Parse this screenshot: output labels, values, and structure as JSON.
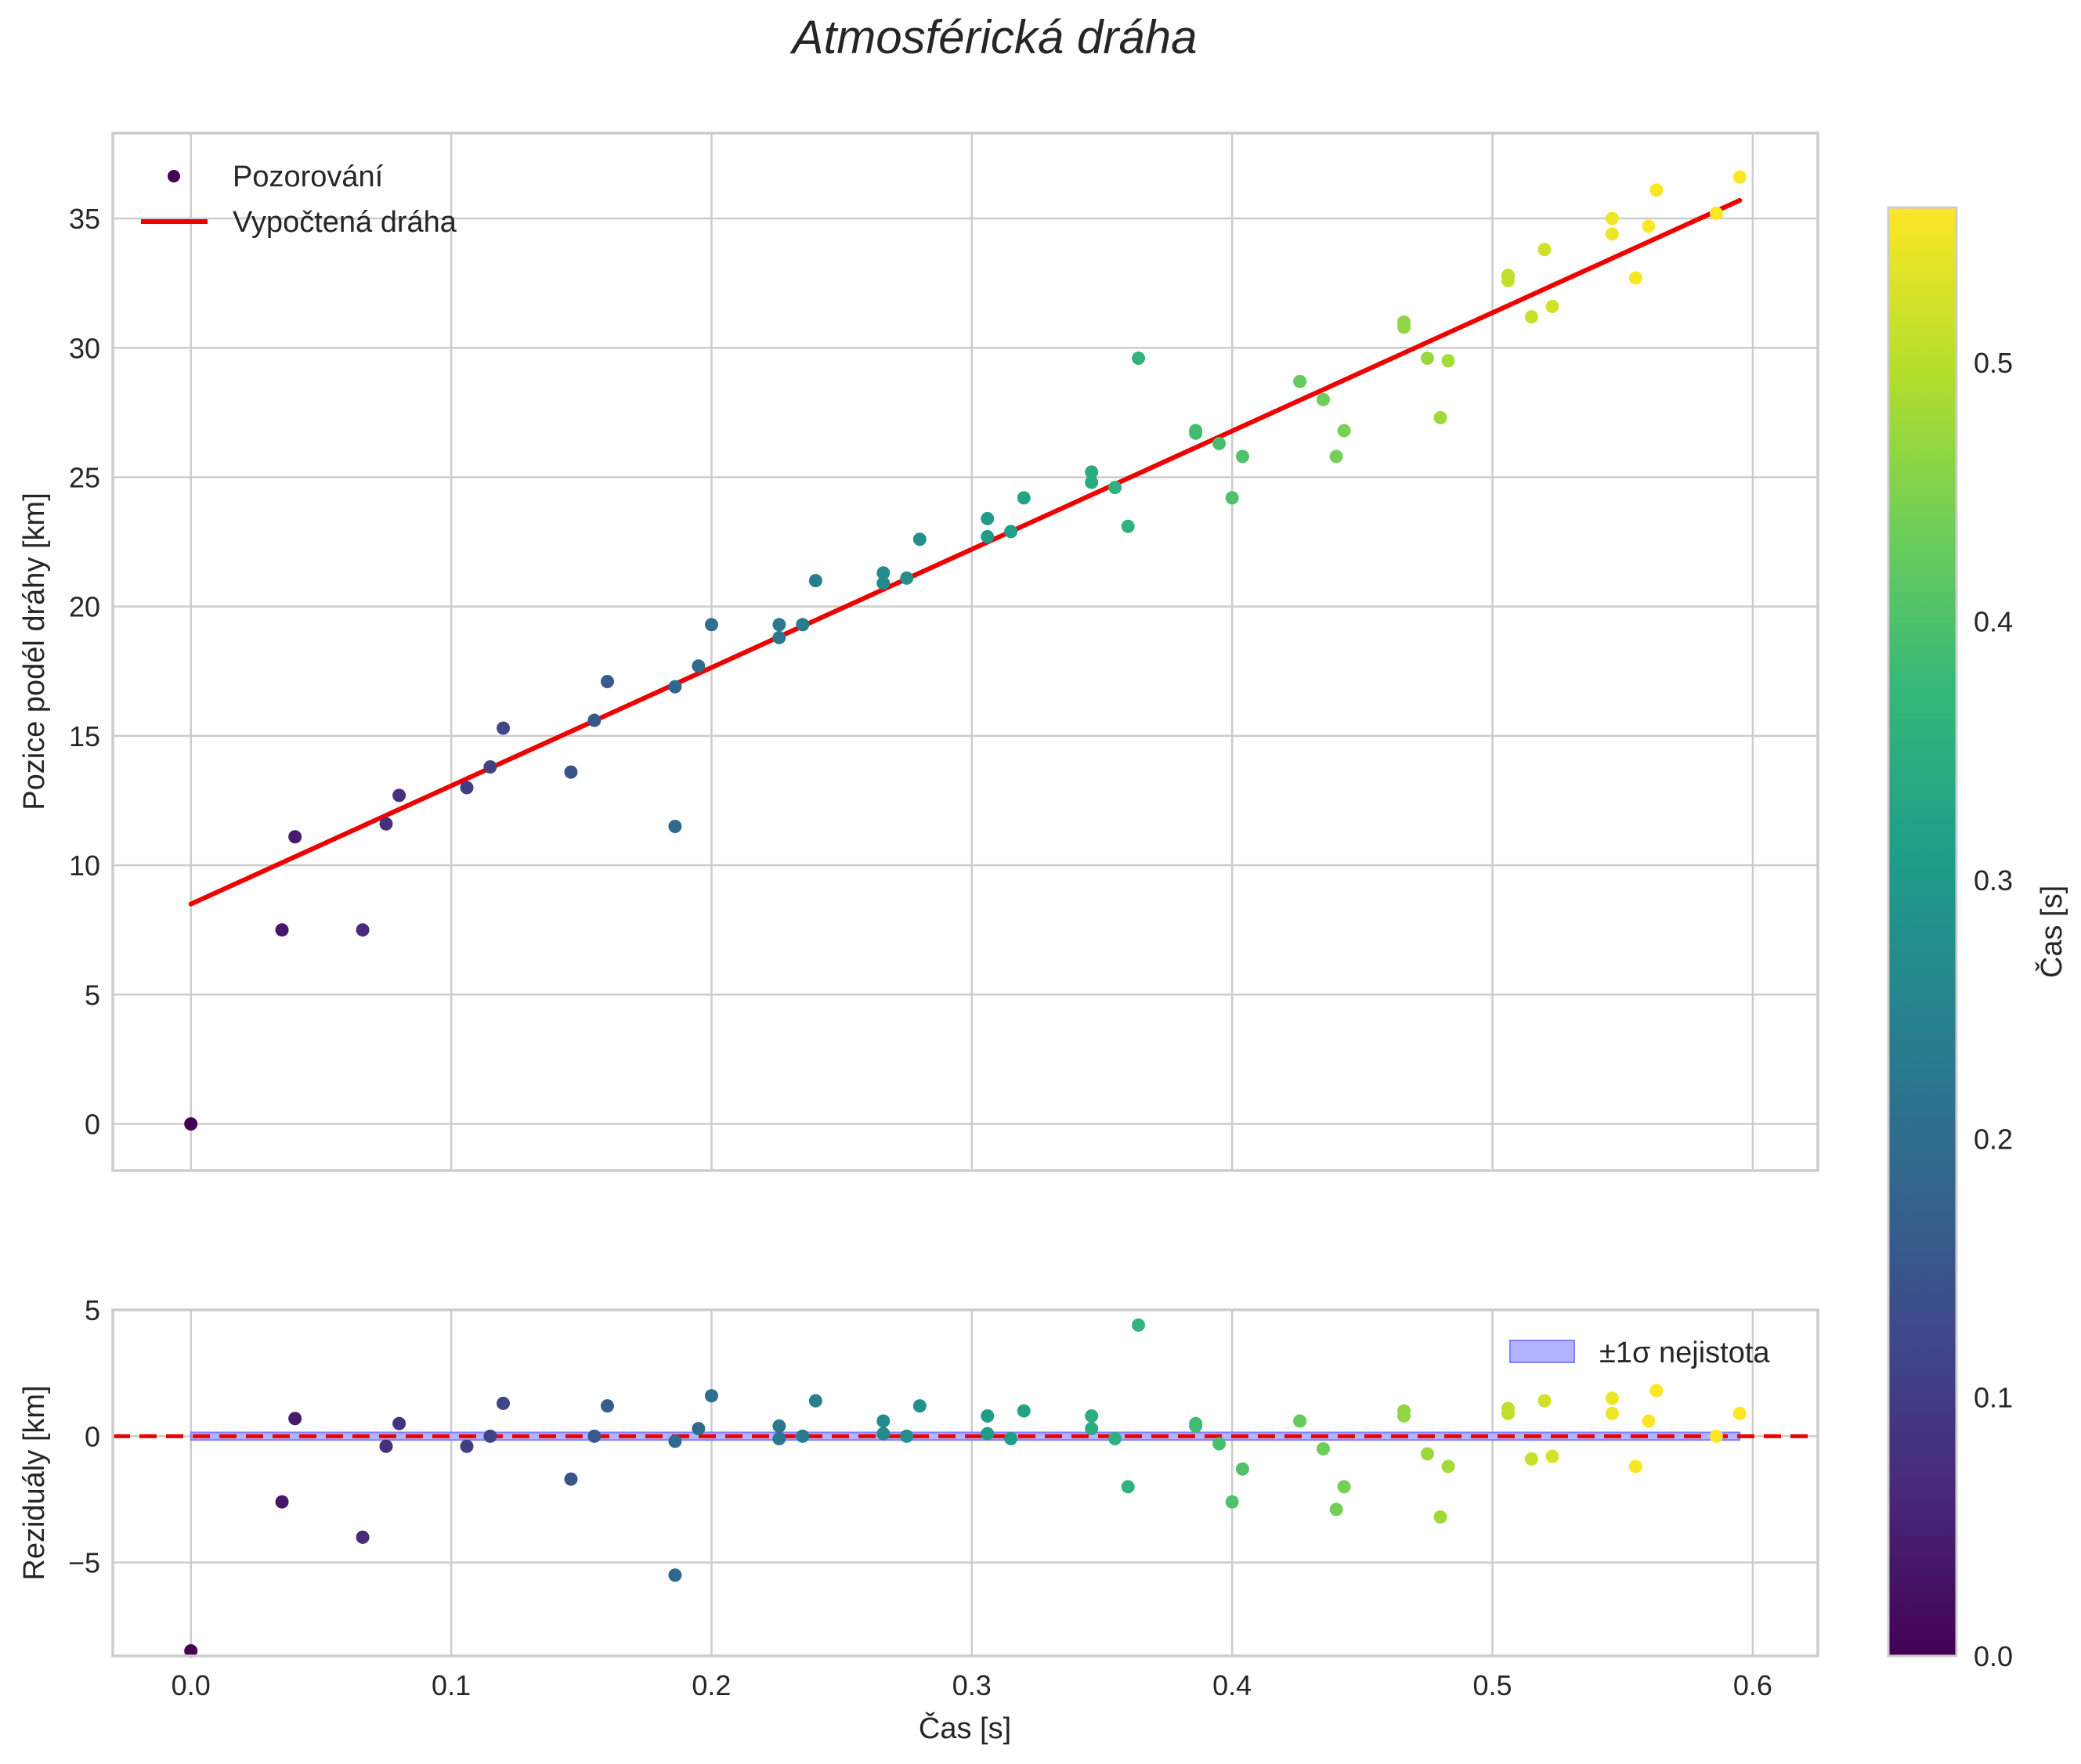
{
  "title": "Atmosférická dráha",
  "colors": {
    "fit_line": "#ee0000",
    "band_fill": "#b3b3ff",
    "band_edge": "#7f7fff",
    "grid": "#cccccc",
    "colormap": [
      "#440154",
      "#482878",
      "#3e4989",
      "#31688e",
      "#26828e",
      "#1f9e89",
      "#35b779",
      "#6ece58",
      "#b5de2b",
      "#fde725"
    ]
  },
  "legend": {
    "observations": "Pozorování",
    "fit": "Vypočtená dráha",
    "band": "±1σ nejistota"
  },
  "colorbar": {
    "label": "Čas [s]",
    "range": [
      0,
      0.56
    ],
    "ticks": [
      "0.0",
      "0.1",
      "0.2",
      "0.3",
      "0.4",
      "0.5"
    ],
    "tick_values": [
      0,
      0.1,
      0.2,
      0.3,
      0.4,
      0.5
    ]
  },
  "chart_data": [
    {
      "type": "scatter",
      "name": "main",
      "xlabel": "Čas [s]",
      "ylabel": "Pozice podél dráhy [km]",
      "xlim": [
        -0.03,
        0.625
      ],
      "ylim": [
        -1.8,
        38.3
      ],
      "xticks": [
        0,
        0.1,
        0.2,
        0.3,
        0.4,
        0.5,
        0.6
      ],
      "xticklabels": [
        "0.0",
        "0.1",
        "0.2",
        "0.3",
        "0.4",
        "0.5",
        "0.6"
      ],
      "yticks": [
        0,
        5,
        10,
        15,
        20,
        25,
        30,
        35
      ],
      "yticklabels": [
        "0",
        "5",
        "10",
        "15",
        "20",
        "25",
        "30",
        "35"
      ],
      "fit": {
        "x": [
          0,
          0.595
        ],
        "y": [
          8.5,
          35.7
        ]
      },
      "points": [
        [
          0.0,
          0.0
        ],
        [
          0.035,
          7.5
        ],
        [
          0.04,
          11.1
        ],
        [
          0.066,
          7.5
        ],
        [
          0.075,
          11.6
        ],
        [
          0.08,
          12.7
        ],
        [
          0.106,
          13.0
        ],
        [
          0.115,
          13.8
        ],
        [
          0.12,
          15.3
        ],
        [
          0.146,
          13.6
        ],
        [
          0.155,
          15.6
        ],
        [
          0.16,
          17.1
        ],
        [
          0.186,
          16.9
        ],
        [
          0.186,
          11.5
        ],
        [
          0.195,
          17.7
        ],
        [
          0.2,
          19.3
        ],
        [
          0.226,
          19.3
        ],
        [
          0.226,
          18.8
        ],
        [
          0.235,
          19.3
        ],
        [
          0.24,
          21.0
        ],
        [
          0.266,
          21.3
        ],
        [
          0.266,
          20.9
        ],
        [
          0.275,
          21.1
        ],
        [
          0.28,
          22.6
        ],
        [
          0.306,
          23.4
        ],
        [
          0.306,
          22.7
        ],
        [
          0.315,
          22.9
        ],
        [
          0.32,
          24.2
        ],
        [
          0.346,
          25.2
        ],
        [
          0.346,
          24.8
        ],
        [
          0.355,
          24.6
        ],
        [
          0.36,
          23.1
        ],
        [
          0.364,
          29.6
        ],
        [
          0.386,
          26.7
        ],
        [
          0.386,
          26.8
        ],
        [
          0.395,
          26.3
        ],
        [
          0.4,
          24.2
        ],
        [
          0.404,
          25.8
        ],
        [
          0.426,
          28.7
        ],
        [
          0.435,
          28.0
        ],
        [
          0.44,
          25.8
        ],
        [
          0.443,
          26.8
        ],
        [
          0.466,
          31.0
        ],
        [
          0.466,
          30.8
        ],
        [
          0.475,
          29.6
        ],
        [
          0.48,
          27.3
        ],
        [
          0.483,
          29.5
        ],
        [
          0.506,
          32.8
        ],
        [
          0.506,
          32.6
        ],
        [
          0.515,
          31.2
        ],
        [
          0.52,
          33.8
        ],
        [
          0.523,
          31.6
        ],
        [
          0.546,
          35.0
        ],
        [
          0.546,
          34.4
        ],
        [
          0.555,
          32.7
        ],
        [
          0.56,
          34.7
        ],
        [
          0.563,
          36.1
        ],
        [
          0.586,
          35.2
        ],
        [
          0.595,
          36.6
        ]
      ]
    },
    {
      "type": "scatter",
      "name": "residuals",
      "xlabel": "Čas [s]",
      "ylabel": "Reziduály [km]",
      "xlim": [
        -0.03,
        0.625
      ],
      "ylim": [
        -8.7,
        5.0
      ],
      "xticks": [
        0,
        0.1,
        0.2,
        0.3,
        0.4,
        0.5,
        0.6
      ],
      "xticklabels": [
        "0.0",
        "0.1",
        "0.2",
        "0.3",
        "0.4",
        "0.5",
        "0.6"
      ],
      "yticks": [
        -5,
        0,
        5
      ],
      "yticklabels": [
        "−5",
        "0",
        "5"
      ],
      "zero_line": 0,
      "band": [
        -0.15,
        0.15
      ],
      "points": [
        [
          0.0,
          -8.5
        ],
        [
          0.035,
          -2.6
        ],
        [
          0.04,
          0.7
        ],
        [
          0.066,
          -4.0
        ],
        [
          0.075,
          -0.4
        ],
        [
          0.08,
          0.5
        ],
        [
          0.106,
          -0.4
        ],
        [
          0.115,
          0.0
        ],
        [
          0.12,
          1.3
        ],
        [
          0.146,
          -1.7
        ],
        [
          0.155,
          0.0
        ],
        [
          0.16,
          1.2
        ],
        [
          0.186,
          -0.2
        ],
        [
          0.186,
          -5.5
        ],
        [
          0.195,
          0.3
        ],
        [
          0.2,
          1.6
        ],
        [
          0.226,
          0.4
        ],
        [
          0.226,
          -0.1
        ],
        [
          0.235,
          0.0
        ],
        [
          0.24,
          1.4
        ],
        [
          0.266,
          0.6
        ],
        [
          0.266,
          0.1
        ],
        [
          0.275,
          0.0
        ],
        [
          0.28,
          1.2
        ],
        [
          0.306,
          0.8
        ],
        [
          0.306,
          0.1
        ],
        [
          0.315,
          -0.1
        ],
        [
          0.32,
          1.0
        ],
        [
          0.346,
          0.8
        ],
        [
          0.346,
          0.3
        ],
        [
          0.355,
          -0.1
        ],
        [
          0.36,
          -2.0
        ],
        [
          0.364,
          4.4
        ],
        [
          0.386,
          0.5
        ],
        [
          0.386,
          0.4
        ],
        [
          0.395,
          -0.3
        ],
        [
          0.4,
          -2.6
        ],
        [
          0.404,
          -1.3
        ],
        [
          0.426,
          0.6
        ],
        [
          0.435,
          -0.5
        ],
        [
          0.44,
          -2.9
        ],
        [
          0.443,
          -2.0
        ],
        [
          0.466,
          1.0
        ],
        [
          0.466,
          0.8
        ],
        [
          0.475,
          -0.7
        ],
        [
          0.48,
          -3.2
        ],
        [
          0.483,
          -1.2
        ],
        [
          0.506,
          1.1
        ],
        [
          0.506,
          0.9
        ],
        [
          0.515,
          -0.9
        ],
        [
          0.52,
          1.4
        ],
        [
          0.523,
          -0.8
        ],
        [
          0.546,
          1.5
        ],
        [
          0.546,
          0.9
        ],
        [
          0.555,
          -1.2
        ],
        [
          0.56,
          0.6
        ],
        [
          0.563,
          1.8
        ],
        [
          0.586,
          0.0
        ],
        [
          0.595,
          0.9
        ]
      ]
    }
  ]
}
